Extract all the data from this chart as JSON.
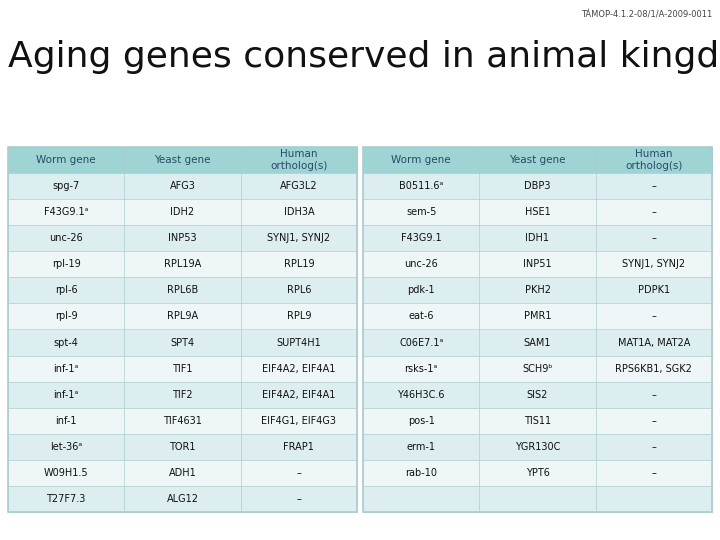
{
  "title": "Aging genes conserved in animal kingdom",
  "subtitle": "TÁMOP-4.1.2-08/1/A-2009-0011",
  "header_bg": "#9ed4d4",
  "row_bg_even": "#ddeef0",
  "row_bg_odd": "#eef6f7",
  "table_border": "#aacccc",
  "header_text_color": "#2a4a6a",
  "cell_text_color": "#111111",
  "title_color": "#111111",
  "subtitle_color": "#444444",
  "title_fontsize": 26,
  "subtitle_fontsize": 6,
  "header_fontsize": 7.5,
  "cell_fontsize": 7,
  "fig_width": 7.2,
  "fig_height": 5.4,
  "left_table": {
    "headers": [
      "Worm gene",
      "Yeast gene",
      "Human\northolog(s)"
    ],
    "rows": [
      [
        "spg-7",
        "AFG3",
        "AFG3L2"
      ],
      [
        "F43G9.1ᵃ",
        "IDH2",
        "IDH3A"
      ],
      [
        "unc-26",
        "INP53",
        "SYNJ1, SYNJ2"
      ],
      [
        "rpl-19",
        "RPL19A",
        "RPL19"
      ],
      [
        "rpl-6",
        "RPL6B",
        "RPL6"
      ],
      [
        "rpl-9",
        "RPL9A",
        "RPL9"
      ],
      [
        "spt-4",
        "SPT4",
        "SUPT4H1"
      ],
      [
        "inf-1ᵃ",
        "TIF1",
        "EIF4A2, EIF4A1"
      ],
      [
        "inf-1ᵃ",
        "TIF2",
        "EIF4A2, EIF4A1"
      ],
      [
        "inf-1",
        "TIF4631",
        "EIF4G1, EIF4G3"
      ],
      [
        "let-36ᵃ",
        "TOR1",
        "FRAP1"
      ],
      [
        "W09H1.5",
        "ADH1",
        "–"
      ],
      [
        "T27F7.3",
        "ALG12",
        "–"
      ]
    ]
  },
  "right_table": {
    "headers": [
      "Worm gene",
      "Yeast gene",
      "Human\northolog(s)"
    ],
    "rows": [
      [
        "B0511.6ᵃ",
        "DBP3",
        "–"
      ],
      [
        "sem-5",
        "HSE1",
        "–"
      ],
      [
        "F43G9.1",
        "IDH1",
        "–"
      ],
      [
        "unc-26",
        "INP51",
        "SYNJ1, SYNJ2"
      ],
      [
        "pdk-1",
        "PKH2",
        "PDPK1"
      ],
      [
        "eat-6",
        "PMR1",
        "–"
      ],
      [
        "C06E7.1ᵃ",
        "SAM1",
        "MAT1A, MAT2A"
      ],
      [
        "rsks-1ᵃ",
        "SCH9ᵇ",
        "RPS6KB1, SGK2"
      ],
      [
        "Y46H3C.6",
        "SIS2",
        "–"
      ],
      [
        "pos-1",
        "TIS11",
        "–"
      ],
      [
        "erm-1",
        "YGR130C",
        "–"
      ],
      [
        "rab-10",
        "YPT6",
        "–"
      ],
      [
        "",
        "",
        ""
      ]
    ]
  }
}
